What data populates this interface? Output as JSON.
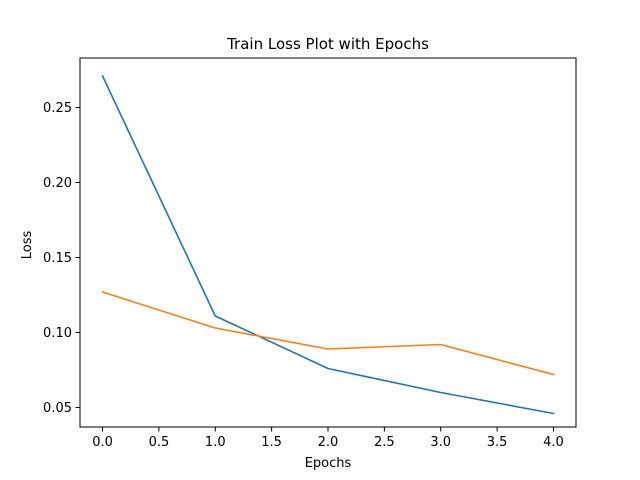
{
  "chart_data": {
    "type": "line",
    "title": "Train Loss Plot with Epochs",
    "xlabel": "Epochs",
    "ylabel": "Loss",
    "x": [
      0,
      1,
      2,
      3,
      4
    ],
    "xlim": [
      -0.2,
      4.2
    ],
    "ylim": [
      0.037,
      0.283
    ],
    "xticks": [
      0.0,
      0.5,
      1.0,
      1.5,
      2.0,
      2.5,
      3.0,
      3.5,
      4.0
    ],
    "xtick_labels": [
      "0.0",
      "0.5",
      "1.0",
      "1.5",
      "2.0",
      "2.5",
      "3.0",
      "3.5",
      "4.0"
    ],
    "yticks": [
      0.05,
      0.1,
      0.15,
      0.2,
      0.25
    ],
    "ytick_labels": [
      "0.05",
      "0.10",
      "0.15",
      "0.20",
      "0.25"
    ],
    "grid": false,
    "series": [
      {
        "color": "#1f77b4",
        "values": [
          0.271,
          0.111,
          0.076,
          0.06,
          0.046
        ]
      },
      {
        "color": "#ff7f0e",
        "values": [
          0.127,
          0.103,
          0.089,
          0.092,
          0.072
        ]
      }
    ]
  }
}
